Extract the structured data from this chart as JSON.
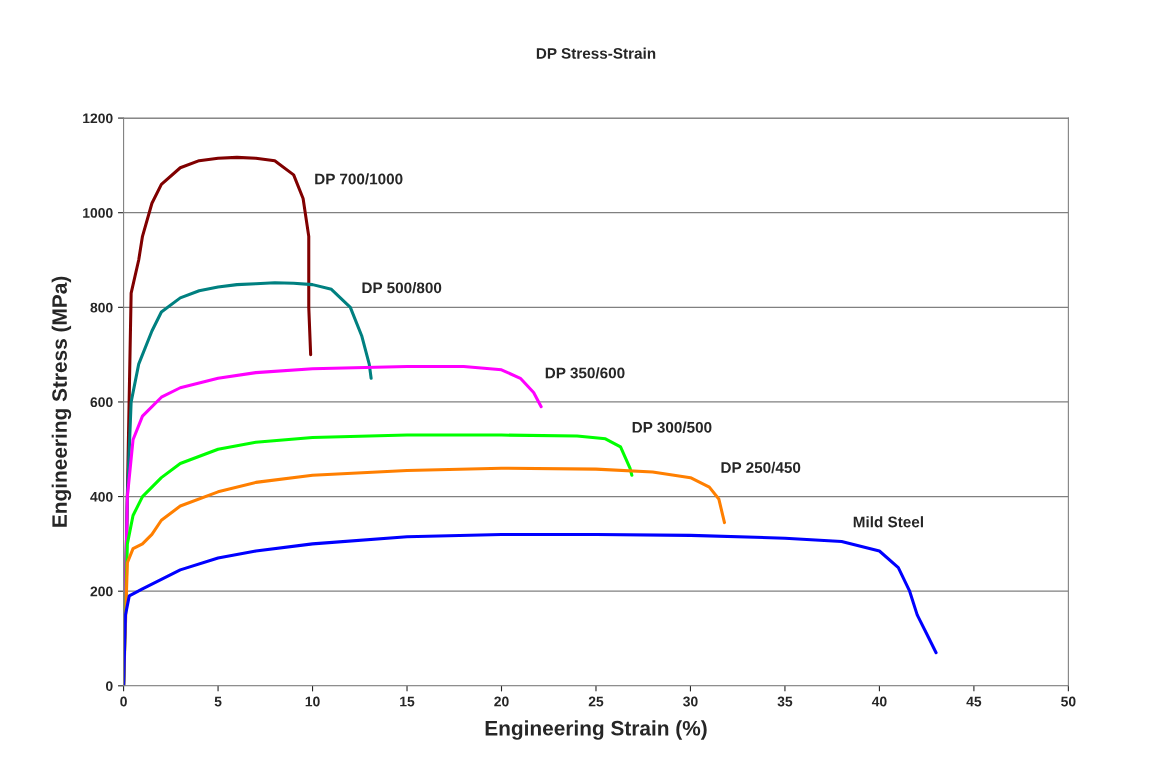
{
  "chart_data": {
    "type": "line",
    "title": "DP Stress-Strain",
    "xlabel": "Engineering Strain (%)",
    "ylabel": "Engineering Stress (MPa)",
    "xlim": [
      0,
      50
    ],
    "xticks": [
      0,
      5,
      10,
      15,
      20,
      25,
      30,
      35,
      40,
      45,
      50
    ],
    "ylim": [
      0,
      1200
    ],
    "yticks": [
      0,
      200,
      400,
      600,
      800,
      1000,
      1200
    ],
    "grid": "y",
    "line_style": "solid",
    "series": [
      {
        "name": "DP 700/1000",
        "color": "#800000",
        "x": [
          0,
          0.2,
          0.4,
          0.8,
          1,
          1.5,
          2,
          3,
          4,
          5,
          6,
          7,
          8,
          9,
          9.5,
          9.8,
          9.8,
          9.9
        ],
        "values": [
          0,
          400,
          830,
          900,
          950,
          1020,
          1060,
          1095,
          1110,
          1115,
          1117,
          1115,
          1110,
          1080,
          1030,
          950,
          800,
          700
        ]
      },
      {
        "name": "DP 500/800",
        "color": "#008080",
        "x": [
          0,
          0.2,
          0.4,
          0.8,
          1.5,
          2,
          3,
          4,
          5,
          6,
          7,
          8,
          9,
          10,
          11,
          12,
          12.6,
          13,
          13.1
        ],
        "values": [
          0,
          400,
          600,
          680,
          750,
          790,
          820,
          835,
          843,
          848,
          850,
          852,
          851,
          848,
          838,
          800,
          740,
          680,
          650
        ]
      },
      {
        "name": "DP 350/600",
        "color": "#ff00ff",
        "x": [
          0,
          0.2,
          0.5,
          1,
          2,
          3,
          5,
          7,
          10,
          15,
          18,
          20,
          21,
          21.7,
          22.1
        ],
        "values": [
          0,
          400,
          520,
          570,
          610,
          630,
          650,
          662,
          670,
          675,
          675,
          668,
          650,
          620,
          590
        ]
      },
      {
        "name": "DP 300/500",
        "color": "#00ff00",
        "x": [
          0,
          0.2,
          0.5,
          1,
          2,
          3,
          5,
          7,
          10,
          15,
          20,
          24,
          25.5,
          26.3,
          26.8,
          26.9
        ],
        "values": [
          0,
          300,
          360,
          400,
          440,
          470,
          500,
          515,
          525,
          530,
          530,
          528,
          522,
          505,
          460,
          445
        ]
      },
      {
        "name": "DP 250/450",
        "color": "#ff7f00",
        "x": [
          0,
          0.2,
          0.5,
          1,
          1.5,
          2,
          3,
          5,
          7,
          10,
          15,
          20,
          25,
          28,
          30,
          31,
          31.5,
          31.8
        ],
        "values": [
          0,
          260,
          290,
          300,
          320,
          350,
          380,
          410,
          430,
          445,
          455,
          460,
          458,
          452,
          440,
          420,
          395,
          345
        ]
      },
      {
        "name": "Mild Steel",
        "color": "#0000ff",
        "x": [
          0,
          0.1,
          0.3,
          1,
          2,
          3,
          5,
          7,
          10,
          15,
          20,
          25,
          30,
          35,
          38,
          40,
          41,
          41.6,
          42,
          42.5,
          43
        ],
        "values": [
          0,
          150,
          190,
          205,
          225,
          245,
          270,
          285,
          300,
          315,
          320,
          320,
          318,
          312,
          305,
          285,
          250,
          200,
          150,
          110,
          70
        ]
      }
    ]
  }
}
